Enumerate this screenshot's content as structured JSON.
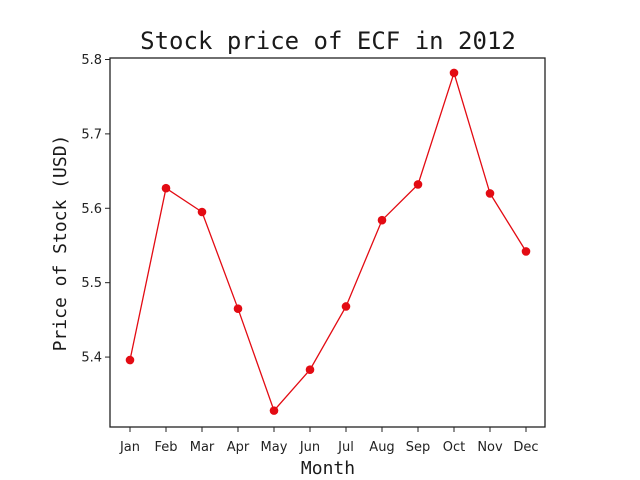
{
  "chart_data": {
    "type": "line",
    "title": "Stock price of ECF in 2012",
    "xlabel": "Month",
    "ylabel": "Price of Stock (USD)",
    "categories": [
      "Jan",
      "Feb",
      "Mar",
      "Apr",
      "May",
      "Jun",
      "Jul",
      "Aug",
      "Sep",
      "Oct",
      "Nov",
      "Dec"
    ],
    "series": [
      {
        "values": [
          5.396,
          5.627,
          5.595,
          5.465,
          5.328,
          5.383,
          5.468,
          5.584,
          5.632,
          5.782,
          5.62,
          5.542
        ],
        "color": "#e30b13",
        "marker": "circle"
      }
    ],
    "yticks": [
      "5.4",
      "5.5",
      "5.6",
      "5.7",
      "5.8"
    ],
    "ylim": [
      5.306,
      5.802
    ],
    "grid": false
  }
}
